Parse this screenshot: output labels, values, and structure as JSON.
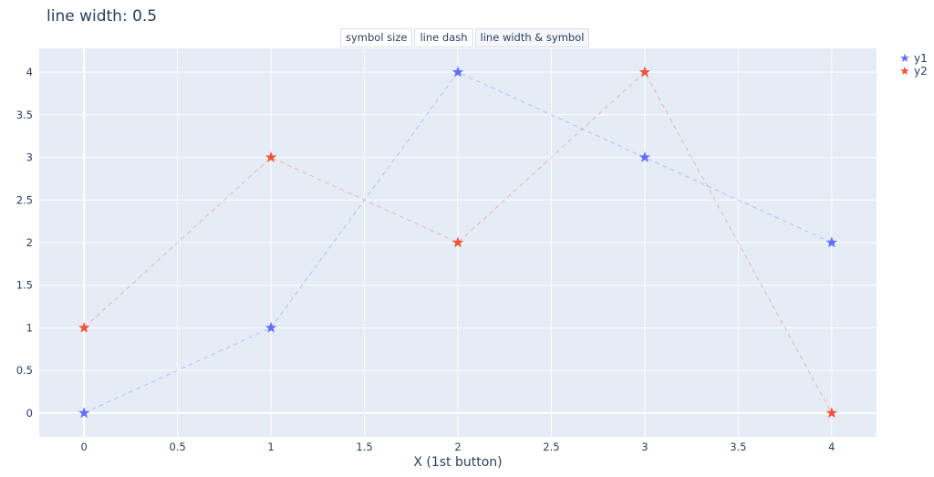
{
  "title": "line width: 0.5",
  "buttons": [
    {
      "label": "symbol size",
      "active": false
    },
    {
      "label": "line dash",
      "active": false
    },
    {
      "label": "line width & symbol",
      "active": true
    }
  ],
  "legend": [
    {
      "name": "y1",
      "color": "#636efa",
      "symbol": "★"
    },
    {
      "name": "y2",
      "color": "#ef553b",
      "symbol": "★"
    }
  ],
  "chart_data": {
    "type": "line",
    "title": "line width: 0.5",
    "xlabel": "X (1st button)",
    "ylabel": "",
    "x": [
      0,
      1,
      2,
      3,
      4
    ],
    "series": [
      {
        "name": "y1",
        "values": [
          0,
          1,
          4,
          3,
          2
        ],
        "color": "#636efa",
        "marker": "star",
        "line_dash": "dash",
        "line_width": 0.5
      },
      {
        "name": "y2",
        "values": [
          1,
          3,
          2,
          4,
          0
        ],
        "color": "#ef553b",
        "marker": "star",
        "line_dash": "dash",
        "line_width": 0.5
      }
    ],
    "xticks": [
      "0",
      "0.5",
      "1",
      "1.5",
      "2",
      "2.5",
      "3",
      "3.5",
      "4"
    ],
    "yticks": [
      "0",
      "0.5",
      "1",
      "1.5",
      "2",
      "2.5",
      "3",
      "3.5",
      "4"
    ],
    "xlim": [
      -0.24,
      4.24
    ],
    "ylim": [
      -0.28,
      4.28
    ],
    "grid": true,
    "legend_position": "right-top",
    "plot_bgcolor": "#e5ecf6"
  }
}
